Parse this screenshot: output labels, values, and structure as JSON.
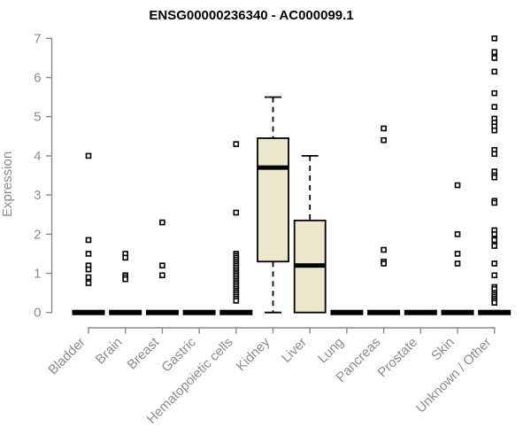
{
  "header": {
    "title": "ENSG00000236340 - AC000099.1"
  },
  "axes": {
    "y_label": "Expression"
  },
  "colors": {
    "box_fill": "#ece7cd",
    "box_stroke": "#000000",
    "axis": "#8a8a8a",
    "tick_text": "#8c8c8c",
    "zero_bar": "#000000"
  },
  "chart_data": {
    "type": "boxplot",
    "title": "ENSG00000236340 - AC000099.1",
    "xlabel": "",
    "ylabel": "Expression",
    "ylim": [
      0,
      7
    ],
    "yticks": [
      0,
      1,
      2,
      3,
      4,
      5,
      6,
      7
    ],
    "grid": false,
    "legend": "none",
    "categories": [
      "Bladder",
      "Brain",
      "Breast",
      "Gastric",
      "Hematopoietic cells",
      "Kidney",
      "Liver",
      "Lung",
      "Pancreas",
      "Prostate",
      "Skin",
      "Unknown / Other"
    ],
    "series": [
      {
        "name": "Bladder",
        "q1": 0,
        "median": 0,
        "q3": 0,
        "whisker_low": 0,
        "whisker_high": 0,
        "outliers": [
          4.0,
          1.85,
          1.5,
          1.2,
          1.1,
          0.9,
          0.75
        ]
      },
      {
        "name": "Brain",
        "q1": 0,
        "median": 0,
        "q3": 0,
        "whisker_low": 0,
        "whisker_high": 0,
        "outliers": [
          1.5,
          1.4,
          0.95,
          0.9,
          0.85
        ]
      },
      {
        "name": "Breast",
        "q1": 0,
        "median": 0,
        "q3": 0,
        "whisker_low": 0,
        "whisker_high": 0,
        "outliers": [
          2.3,
          1.2,
          0.95
        ]
      },
      {
        "name": "Gastric",
        "q1": 0,
        "median": 0,
        "q3": 0,
        "whisker_low": 0,
        "whisker_high": 0,
        "outliers": []
      },
      {
        "name": "Hematopoietic cells",
        "q1": 0,
        "median": 0,
        "q3": 0,
        "whisker_low": 0,
        "whisker_high": 0,
        "outliers": [
          4.3,
          2.55,
          1.5,
          1.45,
          1.4,
          1.35,
          1.3,
          1.25,
          1.2,
          1.15,
          1.1,
          1.05,
          1.0,
          0.95,
          0.9,
          0.85,
          0.8,
          0.75,
          0.7,
          0.65,
          0.6,
          0.55,
          0.5,
          0.45,
          0.4,
          0.35,
          0.3
        ]
      },
      {
        "name": "Kidney",
        "q1": 1.3,
        "median": 3.7,
        "q3": 4.45,
        "whisker_low": 0,
        "whisker_high": 5.5,
        "outliers": []
      },
      {
        "name": "Liver",
        "q1": 0,
        "median": 1.2,
        "q3": 2.35,
        "whisker_low": 0,
        "whisker_high": 4.0,
        "outliers": []
      },
      {
        "name": "Lung",
        "q1": 0,
        "median": 0,
        "q3": 0,
        "whisker_low": 0,
        "whisker_high": 0,
        "outliers": []
      },
      {
        "name": "Pancreas",
        "q1": 0,
        "median": 0,
        "q3": 0,
        "whisker_low": 0,
        "whisker_high": 0,
        "outliers": [
          4.7,
          4.4,
          1.6,
          1.3,
          1.25
        ]
      },
      {
        "name": "Prostate",
        "q1": 0,
        "median": 0,
        "q3": 0,
        "whisker_low": 0,
        "whisker_high": 0,
        "outliers": []
      },
      {
        "name": "Skin",
        "q1": 0,
        "median": 0,
        "q3": 0,
        "whisker_low": 0,
        "whisker_high": 0,
        "outliers": [
          3.25,
          2.0,
          1.5,
          1.25
        ]
      },
      {
        "name": "Unknown / Other",
        "q1": 0,
        "median": 0,
        "q3": 0,
        "whisker_low": 0,
        "whisker_high": 0,
        "outliers": [
          7.0,
          6.65,
          6.5,
          6.15,
          5.6,
          5.25,
          4.95,
          4.85,
          4.75,
          4.65,
          4.15,
          4.05,
          3.6,
          3.5,
          3.45,
          2.85,
          2.8,
          2.1,
          2.0,
          1.85,
          1.7,
          1.25,
          0.95,
          0.65,
          0.6,
          0.5,
          0.45,
          0.4,
          0.35,
          0.3,
          0.25
        ]
      }
    ]
  }
}
